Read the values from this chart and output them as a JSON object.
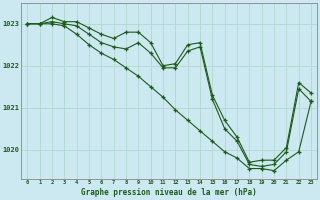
{
  "title": "Graphe pression niveau de la mer (hPa)",
  "background_color": "#cce8f0",
  "grid_color": "#b0d8cc",
  "line_color": "#1a5c1a",
  "xlim": [
    -0.5,
    23.5
  ],
  "ylim": [
    1019.3,
    1023.5
  ],
  "yticks": [
    1020,
    1021,
    1022,
    1023
  ],
  "xticks": [
    0,
    1,
    2,
    3,
    4,
    5,
    6,
    7,
    8,
    9,
    10,
    11,
    12,
    13,
    14,
    15,
    16,
    17,
    18,
    19,
    20,
    21,
    22,
    23
  ],
  "series": [
    {
      "x": [
        0,
        1,
        2,
        3,
        4,
        5,
        6,
        7,
        8,
        9,
        10,
        11,
        12,
        13,
        14,
        15,
        16,
        17,
        18,
        19,
        20,
        21,
        22,
        23
      ],
      "y": [
        1023.0,
        1023.0,
        1023.15,
        1023.05,
        1023.05,
        1022.9,
        1022.75,
        1022.65,
        1022.8,
        1022.8,
        1022.55,
        1022.0,
        1022.05,
        1022.5,
        1022.55,
        1021.3,
        1020.7,
        1020.3,
        1019.7,
        1019.75,
        1019.75,
        1020.05,
        1021.6,
        1021.35
      ]
    },
    {
      "x": [
        0,
        1,
        2,
        3,
        4,
        5,
        6,
        7,
        8,
        9,
        10,
        11,
        12,
        13,
        14,
        15,
        16,
        17,
        18,
        19,
        20,
        21,
        22,
        23
      ],
      "y": [
        1023.0,
        1023.0,
        1023.05,
        1023.0,
        1022.95,
        1022.75,
        1022.55,
        1022.45,
        1022.4,
        1022.55,
        1022.3,
        1021.95,
        1021.95,
        1022.35,
        1022.45,
        1021.2,
        1020.5,
        1020.2,
        1019.65,
        1019.6,
        1019.65,
        1019.95,
        1021.45,
        1021.15
      ]
    },
    {
      "x": [
        0,
        1,
        2,
        3,
        4,
        5,
        6,
        7,
        8,
        9,
        10,
        11,
        12,
        13,
        14,
        15,
        16,
        17,
        18,
        19,
        20,
        21,
        22,
        23
      ],
      "y": [
        1023.0,
        1023.0,
        1023.0,
        1022.95,
        1022.75,
        1022.5,
        1022.3,
        1022.15,
        1021.95,
        1021.75,
        1021.5,
        1021.25,
        1020.95,
        1020.7,
        1020.45,
        1020.2,
        1019.95,
        1019.8,
        1019.55,
        1019.55,
        1019.5,
        1019.75,
        1019.95,
        1021.15
      ]
    }
  ]
}
